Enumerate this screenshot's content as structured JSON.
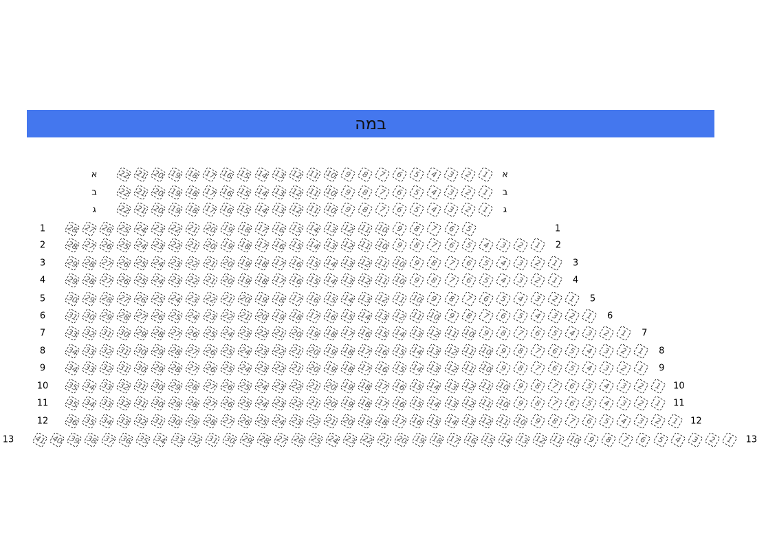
{
  "stage": {
    "label": "במה",
    "color": "#4477ee"
  },
  "rows": [
    {
      "label": "א",
      "first": 22,
      "last": 1
    },
    {
      "label": "ב",
      "first": 22,
      "last": 1
    },
    {
      "label": "ג",
      "first": 22,
      "last": 1
    },
    {
      "label": "1",
      "first": 28,
      "last": 5
    },
    {
      "label": "2",
      "first": 28,
      "last": 1
    },
    {
      "label": "3",
      "first": 29,
      "last": 1
    },
    {
      "label": "4",
      "first": 29,
      "last": 1
    },
    {
      "label": "5",
      "first": 30,
      "last": 1
    },
    {
      "label": "6",
      "first": 31,
      "last": 1
    },
    {
      "label": "7",
      "first": 33,
      "last": 1
    },
    {
      "label": "8",
      "first": 34,
      "last": 1
    },
    {
      "label": "9",
      "first": 34,
      "last": 1
    },
    {
      "label": "10",
      "first": 35,
      "last": 1
    },
    {
      "label": "11",
      "first": 35,
      "last": 1
    },
    {
      "label": "12",
      "first": 36,
      "last": 1
    },
    {
      "label": "13",
      "first": 41,
      "last": 1
    }
  ]
}
